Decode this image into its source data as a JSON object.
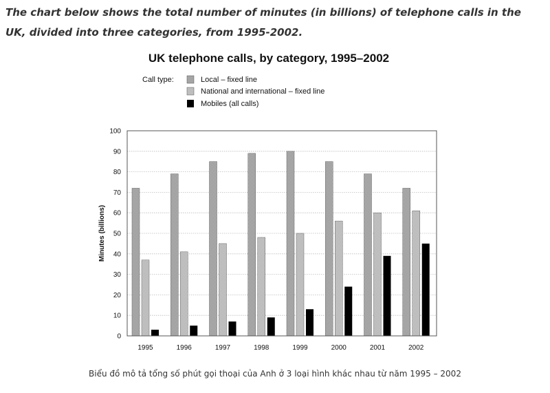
{
  "intro_text": "The chart below shows the total number of minutes (in billions) of telephone calls in the UK, divided into three categories, from 1995-2002.",
  "caption": "Biểu đồ mô tả tổng số phút gọi thoại của Anh ở 3 loại hình khác nhau từ năm 1995 – 2002",
  "chart_data": {
    "type": "bar",
    "title": "UK telephone calls, by category, 1995–2002",
    "legend_title": "Call type:",
    "legend_position": "top-left",
    "xlabel": "",
    "ylabel": "Minutes (billions)",
    "ylim": [
      0,
      100
    ],
    "yticks": [
      0,
      10,
      20,
      30,
      40,
      50,
      60,
      70,
      80,
      90,
      100
    ],
    "grid": true,
    "categories": [
      "1995",
      "1996",
      "1997",
      "1998",
      "1999",
      "2000",
      "2001",
      "2002"
    ],
    "series": [
      {
        "name": "Local – fixed line",
        "color": "#8c8c8c",
        "pattern": "dense-checker",
        "values": [
          72,
          79,
          85,
          89,
          90,
          85,
          79,
          72
        ]
      },
      {
        "name": "National and international – fixed line",
        "color": "#a6a6a6",
        "pattern": "light-checker",
        "values": [
          37,
          41,
          45,
          48,
          50,
          56,
          60,
          61
        ]
      },
      {
        "name": "Mobiles (all calls)",
        "color": "#000000",
        "pattern": "solid",
        "values": [
          3,
          5,
          7,
          9,
          13,
          24,
          39,
          45
        ]
      }
    ]
  }
}
